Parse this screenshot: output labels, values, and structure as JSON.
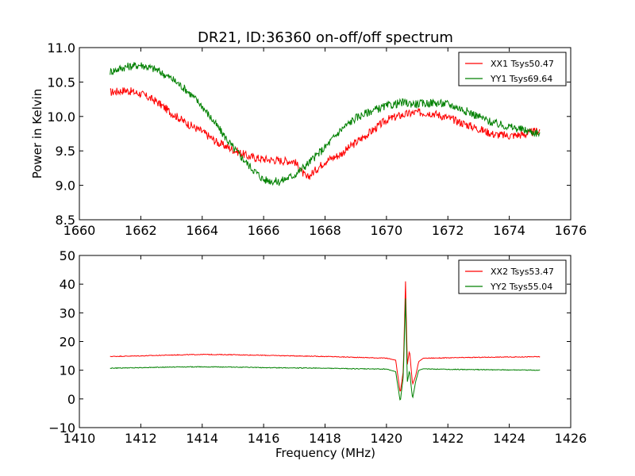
{
  "figure": {
    "title": "DR21, ID:36360 on-off/off spectrum",
    "xlabel_bottom": "Frequency (MHz)"
  },
  "chart_data": [
    {
      "type": "line",
      "title": "DR21, ID:36360 on-off/off spectrum",
      "xlabel": "",
      "ylabel": "Power in Kelvin",
      "xlim": [
        1660,
        1676
      ],
      "ylim": [
        8.5,
        11.0
      ],
      "xticks": [
        "1660",
        "1662",
        "1664",
        "1666",
        "1668",
        "1670",
        "1672",
        "1674",
        "1676"
      ],
      "yticks": [
        "8.5",
        "9.0",
        "9.5",
        "10.0",
        "10.5",
        "11.0"
      ],
      "grid": false,
      "legend_position": "top-right",
      "series": [
        {
          "name": "XX1 Tsys50.47",
          "color": "#ff0000",
          "x": [
            1661.0,
            1661.5,
            1662.0,
            1662.5,
            1663.0,
            1663.5,
            1664.0,
            1664.5,
            1665.0,
            1665.5,
            1666.0,
            1666.5,
            1667.0,
            1667.4,
            1668.0,
            1668.5,
            1669.0,
            1669.5,
            1670.0,
            1670.5,
            1671.0,
            1671.5,
            1672.0,
            1672.5,
            1673.0,
            1673.5,
            1674.0,
            1674.5,
            1675.0
          ],
          "values": [
            10.35,
            10.38,
            10.33,
            10.22,
            10.05,
            9.9,
            9.78,
            9.62,
            9.52,
            9.42,
            9.38,
            9.36,
            9.35,
            9.1,
            9.35,
            9.45,
            9.62,
            9.78,
            9.95,
            10.02,
            10.06,
            10.05,
            9.98,
            9.9,
            9.82,
            9.74,
            9.72,
            9.74,
            9.8
          ]
        },
        {
          "name": "YY1 Tsys69.64",
          "color": "#008000",
          "x": [
            1661.0,
            1661.5,
            1662.0,
            1662.5,
            1663.0,
            1663.5,
            1664.0,
            1664.5,
            1665.0,
            1665.5,
            1666.0,
            1666.5,
            1667.0,
            1667.4,
            1668.0,
            1668.5,
            1669.0,
            1669.5,
            1670.0,
            1670.5,
            1671.0,
            1671.5,
            1672.0,
            1672.5,
            1673.0,
            1673.5,
            1674.0,
            1674.5,
            1675.0
          ],
          "values": [
            10.65,
            10.72,
            10.75,
            10.68,
            10.55,
            10.38,
            10.15,
            9.85,
            9.55,
            9.3,
            9.08,
            9.05,
            9.15,
            9.3,
            9.55,
            9.8,
            9.98,
            10.08,
            10.15,
            10.2,
            10.18,
            10.2,
            10.18,
            10.1,
            10.0,
            9.9,
            9.85,
            9.8,
            9.75
          ]
        }
      ]
    },
    {
      "type": "line",
      "title": "",
      "xlabel": "Frequency (MHz)",
      "ylabel": "",
      "xlim": [
        1410,
        1426
      ],
      "ylim": [
        -10,
        50
      ],
      "xticks": [
        "1410",
        "1412",
        "1414",
        "1416",
        "1418",
        "1420",
        "1422",
        "1424",
        "1426"
      ],
      "yticks": [
        "−10",
        "0",
        "10",
        "20",
        "30",
        "40",
        "50"
      ],
      "grid": false,
      "legend_position": "top-right",
      "series": [
        {
          "name": "XX2 Tsys53.47",
          "color": "#ff0000",
          "x": [
            1411.0,
            1412.0,
            1413.0,
            1414.0,
            1415.0,
            1416.0,
            1417.0,
            1418.0,
            1419.0,
            1420.0,
            1420.3,
            1420.45,
            1420.55,
            1420.62,
            1420.68,
            1420.75,
            1420.85,
            1420.95,
            1421.05,
            1421.2,
            1422.0,
            1423.0,
            1424.0,
            1425.0
          ],
          "values": [
            14.8,
            15.0,
            15.3,
            15.5,
            15.4,
            15.2,
            15.0,
            14.8,
            14.5,
            14.2,
            13.5,
            2.0,
            10.0,
            41.0,
            12.0,
            17.0,
            5.0,
            8.0,
            13.0,
            14.2,
            14.3,
            14.5,
            14.6,
            14.7
          ]
        },
        {
          "name": "YY2 Tsys55.04",
          "color": "#008000",
          "x": [
            1411.0,
            1412.0,
            1413.0,
            1414.0,
            1415.0,
            1416.0,
            1417.0,
            1418.0,
            1419.0,
            1420.0,
            1420.3,
            1420.45,
            1420.55,
            1420.62,
            1420.68,
            1420.75,
            1420.85,
            1420.95,
            1421.05,
            1421.2,
            1422.0,
            1423.0,
            1424.0,
            1425.0
          ],
          "values": [
            10.7,
            10.9,
            11.1,
            11.2,
            11.1,
            10.9,
            10.8,
            10.7,
            10.5,
            10.4,
            9.5,
            -1.0,
            8.0,
            35.0,
            6.0,
            10.0,
            0.0,
            6.0,
            10.0,
            10.5,
            10.3,
            10.2,
            10.1,
            10.0
          ]
        }
      ]
    }
  ]
}
